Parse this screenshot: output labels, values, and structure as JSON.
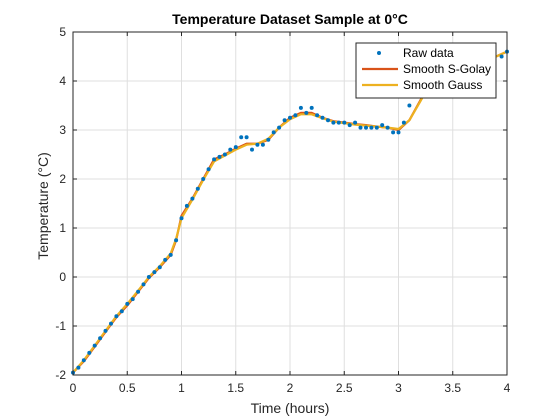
{
  "colors": {
    "raw": "#0072BD",
    "sgolay": "#D95319",
    "gauss": "#EDB120",
    "grid": "#DFDFDF",
    "axis": "#262626"
  },
  "chart_data": {
    "type": "line",
    "title": "Temperature Dataset Sample at 0°C",
    "xlabel": "Time (hours)",
    "ylabel": "Temperature (°C)",
    "xlim": [
      0,
      4
    ],
    "ylim": [
      -2,
      5
    ],
    "xticks": [
      0,
      0.5,
      1,
      1.5,
      2,
      2.5,
      3,
      3.5,
      4
    ],
    "xtick_labels": [
      "0",
      "0.5",
      "1",
      "1.5",
      "2",
      "2.5",
      "3",
      "3.5",
      "4"
    ],
    "yticks": [
      -2,
      -1,
      0,
      1,
      2,
      3,
      4,
      5
    ],
    "ytick_labels": [
      "-2",
      "-1",
      "0",
      "1",
      "2",
      "3",
      "4",
      "5"
    ],
    "grid": true,
    "legend_position": "top-right",
    "series": [
      {
        "name": "Raw data",
        "style": "markers",
        "x": [
          0.0,
          0.05,
          0.1,
          0.15,
          0.2,
          0.25,
          0.3,
          0.35,
          0.4,
          0.45,
          0.5,
          0.55,
          0.6,
          0.65,
          0.7,
          0.75,
          0.8,
          0.85,
          0.9,
          0.95,
          1.0,
          1.05,
          1.1,
          1.15,
          1.2,
          1.25,
          1.3,
          1.35,
          1.4,
          1.45,
          1.5,
          1.55,
          1.6,
          1.65,
          1.7,
          1.75,
          1.8,
          1.85,
          1.9,
          1.95,
          2.0,
          2.05,
          2.1,
          2.15,
          2.2,
          2.25,
          2.3,
          2.35,
          2.4,
          2.45,
          2.5,
          2.55,
          2.6,
          2.65,
          2.7,
          2.75,
          2.8,
          2.85,
          2.9,
          2.95,
          3.0,
          3.05,
          3.1,
          3.15,
          3.2,
          3.95,
          4.0
        ],
        "y": [
          -1.95,
          -1.85,
          -1.7,
          -1.55,
          -1.4,
          -1.25,
          -1.1,
          -0.95,
          -0.8,
          -0.7,
          -0.55,
          -0.45,
          -0.3,
          -0.15,
          0.0,
          0.1,
          0.2,
          0.35,
          0.45,
          0.75,
          1.2,
          1.45,
          1.6,
          1.8,
          2.0,
          2.2,
          2.4,
          2.45,
          2.5,
          2.6,
          2.65,
          2.85,
          2.85,
          2.6,
          2.7,
          2.7,
          2.8,
          2.95,
          3.05,
          3.2,
          3.25,
          3.3,
          3.45,
          3.35,
          3.45,
          3.3,
          3.25,
          3.2,
          3.15,
          3.15,
          3.15,
          3.1,
          3.15,
          3.05,
          3.05,
          3.05,
          3.05,
          3.1,
          3.05,
          2.95,
          2.95,
          3.15,
          3.5,
          3.8,
          4.05,
          4.5,
          4.6
        ]
      },
      {
        "name": "Smooth S-Golay",
        "style": "line",
        "x": [
          0.0,
          0.1,
          0.2,
          0.3,
          0.4,
          0.5,
          0.6,
          0.7,
          0.8,
          0.9,
          0.95,
          1.0,
          1.1,
          1.2,
          1.3,
          1.4,
          1.5,
          1.6,
          1.7,
          1.8,
          1.9,
          2.0,
          2.1,
          2.2,
          2.3,
          2.4,
          2.5,
          2.6,
          2.7,
          2.8,
          2.9,
          3.0,
          3.1,
          3.2,
          3.3,
          3.4,
          3.5,
          3.6,
          3.7,
          3.8,
          3.9,
          4.0
        ],
        "y": [
          -1.95,
          -1.72,
          -1.42,
          -1.12,
          -0.82,
          -0.58,
          -0.3,
          -0.02,
          0.2,
          0.45,
          0.75,
          1.25,
          1.6,
          2.0,
          2.4,
          2.5,
          2.62,
          2.72,
          2.72,
          2.8,
          3.05,
          3.25,
          3.35,
          3.35,
          3.25,
          3.18,
          3.15,
          3.12,
          3.1,
          3.07,
          3.05,
          3.0,
          3.2,
          3.6,
          4.0,
          4.2,
          4.3,
          4.35,
          4.4,
          4.45,
          4.5,
          4.6
        ]
      },
      {
        "name": "Smooth Gauss",
        "style": "line",
        "x": [
          0.0,
          0.1,
          0.2,
          0.3,
          0.4,
          0.5,
          0.6,
          0.7,
          0.8,
          0.9,
          0.95,
          1.0,
          1.1,
          1.2,
          1.3,
          1.4,
          1.5,
          1.6,
          1.7,
          1.8,
          1.9,
          2.0,
          2.1,
          2.2,
          2.3,
          2.4,
          2.5,
          2.6,
          2.7,
          2.8,
          2.9,
          3.0,
          3.1,
          3.2,
          3.3,
          3.4,
          3.5,
          3.6,
          3.7,
          3.8,
          3.9,
          4.0
        ],
        "y": [
          -1.95,
          -1.7,
          -1.4,
          -1.1,
          -0.8,
          -0.55,
          -0.28,
          0.0,
          0.22,
          0.48,
          0.78,
          1.2,
          1.58,
          1.98,
          2.36,
          2.48,
          2.6,
          2.7,
          2.72,
          2.82,
          3.05,
          3.22,
          3.32,
          3.32,
          3.24,
          3.17,
          3.14,
          3.11,
          3.09,
          3.07,
          3.05,
          3.02,
          3.2,
          3.58,
          3.98,
          4.2,
          4.3,
          4.35,
          4.4,
          4.45,
          4.5,
          4.6
        ]
      }
    ]
  }
}
